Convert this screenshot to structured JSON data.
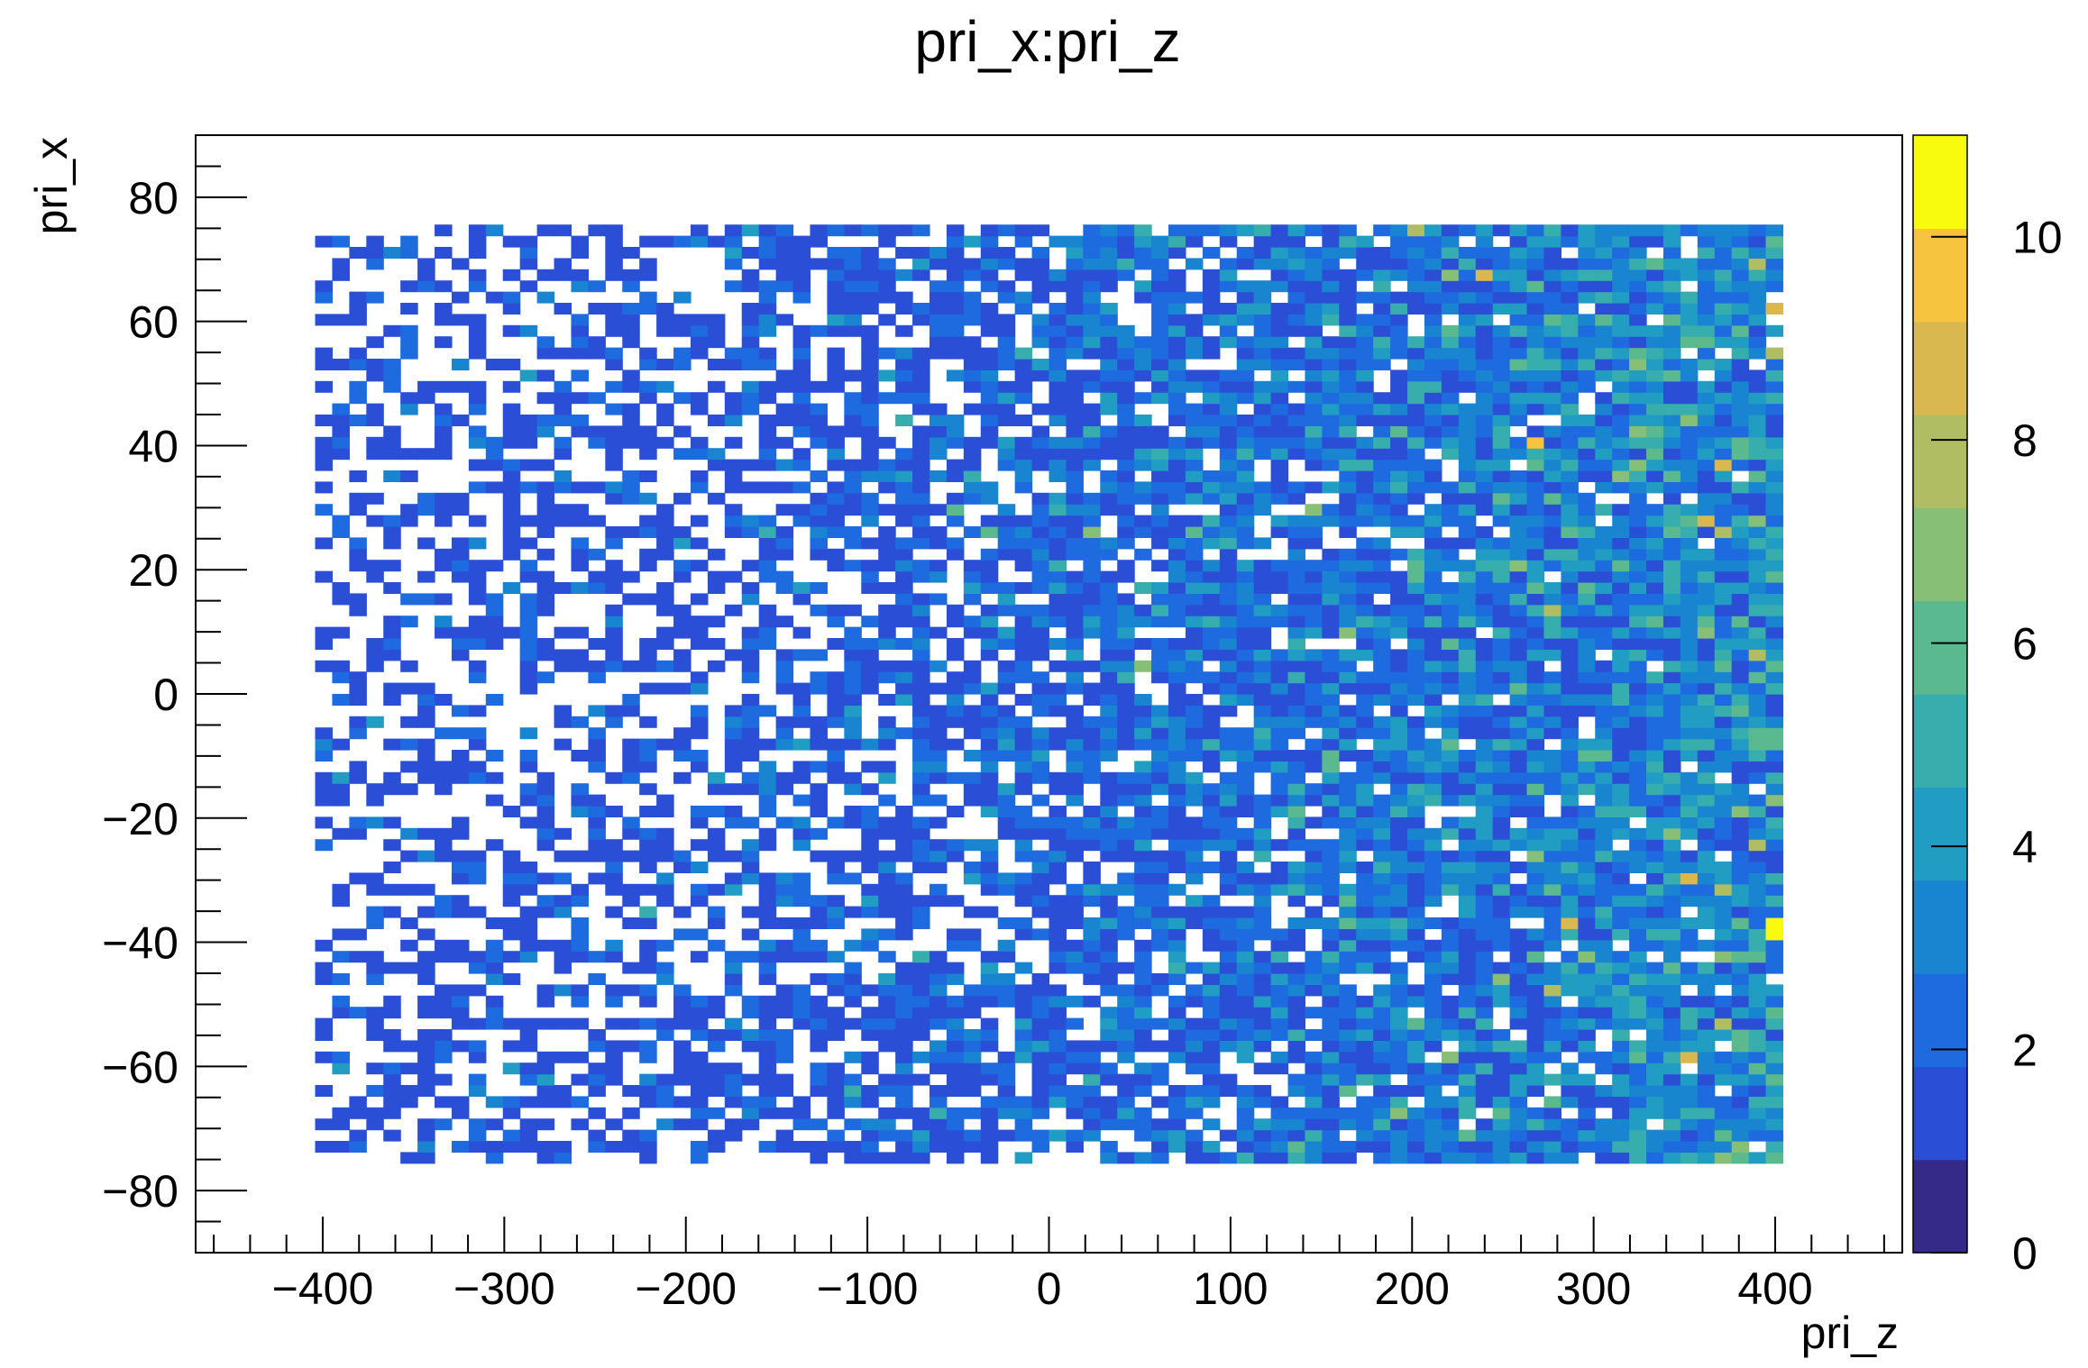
{
  "chart_data": {
    "type": "heatmap",
    "title": "pri_x:pri_z",
    "xlabel": "pri_z",
    "ylabel": "pri_x",
    "xlim": [
      -470,
      470
    ],
    "ylim": [
      -90,
      90
    ],
    "x_ticks": [
      -400,
      -300,
      -200,
      -100,
      0,
      100,
      200,
      300,
      400
    ],
    "x_tick_labels": [
      "−400",
      "−300",
      "−200",
      "−100",
      "0",
      "100",
      "200",
      "300",
      "400"
    ],
    "y_ticks": [
      -80,
      -60,
      -40,
      -20,
      0,
      20,
      40,
      60,
      80
    ],
    "y_tick_labels": [
      "−80",
      "−60",
      "−40",
      "−20",
      "0",
      "20",
      "40",
      "60",
      "80"
    ],
    "data_x_range": [
      -400,
      400
    ],
    "data_y_range": [
      -75,
      75
    ],
    "colorbar": {
      "zlim": [
        0,
        11
      ],
      "ticks": [
        0,
        2,
        4,
        6,
        8,
        10
      ],
      "tick_labels": [
        "0",
        "2",
        "4",
        "6",
        "8",
        "10"
      ],
      "colors": [
        "#352a87",
        "#2a4fd6",
        "#1e6be0",
        "#1985d1",
        "#219cc2",
        "#38adae",
        "#5bb98f",
        "#87bf77",
        "#b1bd62",
        "#d9b94f",
        "#f6c43f",
        "#f9fb0e"
      ]
    },
    "trend": "bin counts increase from about 1 at pri_z = -400 to 4-6 near pri_z = 400; maximum about 11 near pri_z = 400, pri_x = -38",
    "grid": false,
    "legend": "colorbar-right"
  }
}
